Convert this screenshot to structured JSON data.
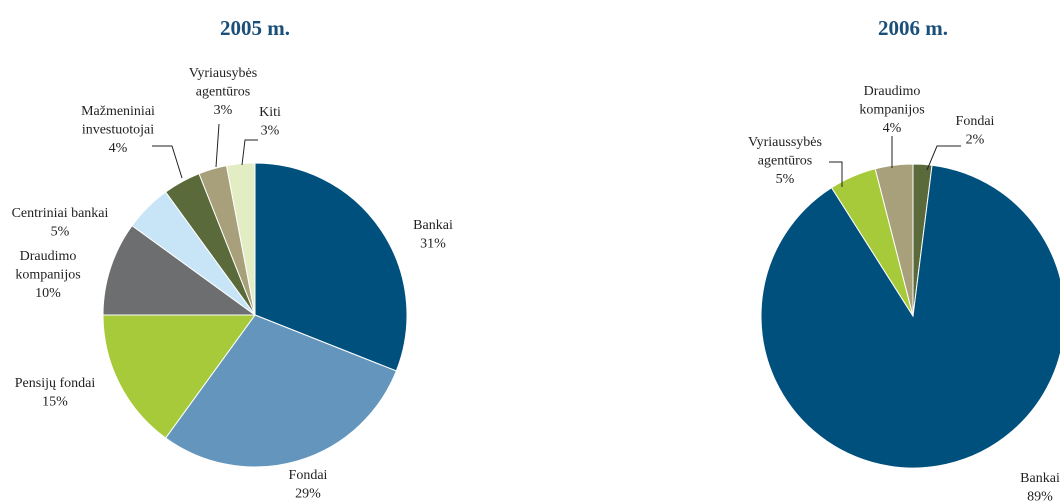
{
  "chart_data": [
    {
      "type": "pie",
      "title": "2005 m.",
      "categories": [
        "Bankai",
        "Fondai",
        "Pensijų fondai",
        "Draudimo kompanijos",
        "Centriniai bankai",
        "Mažmeniniai investuotojai",
        "Vyriausybės agentūros",
        "Kiti"
      ],
      "values": [
        31,
        29,
        15,
        10,
        5,
        4,
        3,
        3
      ],
      "value_labels": [
        "31%",
        "29%",
        "15%",
        "10%",
        "5%",
        "4%",
        "3%",
        "3%"
      ],
      "colors": [
        "#00507e",
        "#6496bd",
        "#a6ca3a",
        "#6d6e70",
        "#c7e5f7",
        "#5a6a3a",
        "#a8a07a",
        "#e3edc4"
      ]
    },
    {
      "type": "pie",
      "title": "2006 m.",
      "categories": [
        "Fondai",
        "Bankai",
        "Vyriaussybės agentūros",
        "Draudimo kompanijos"
      ],
      "values": [
        2,
        89,
        5,
        4
      ],
      "value_labels": [
        "2%",
        "89%",
        "5%",
        "4%"
      ],
      "colors": [
        "#5a6a3a",
        "#00507e",
        "#a6ca3a",
        "#a8a07a"
      ]
    }
  ]
}
